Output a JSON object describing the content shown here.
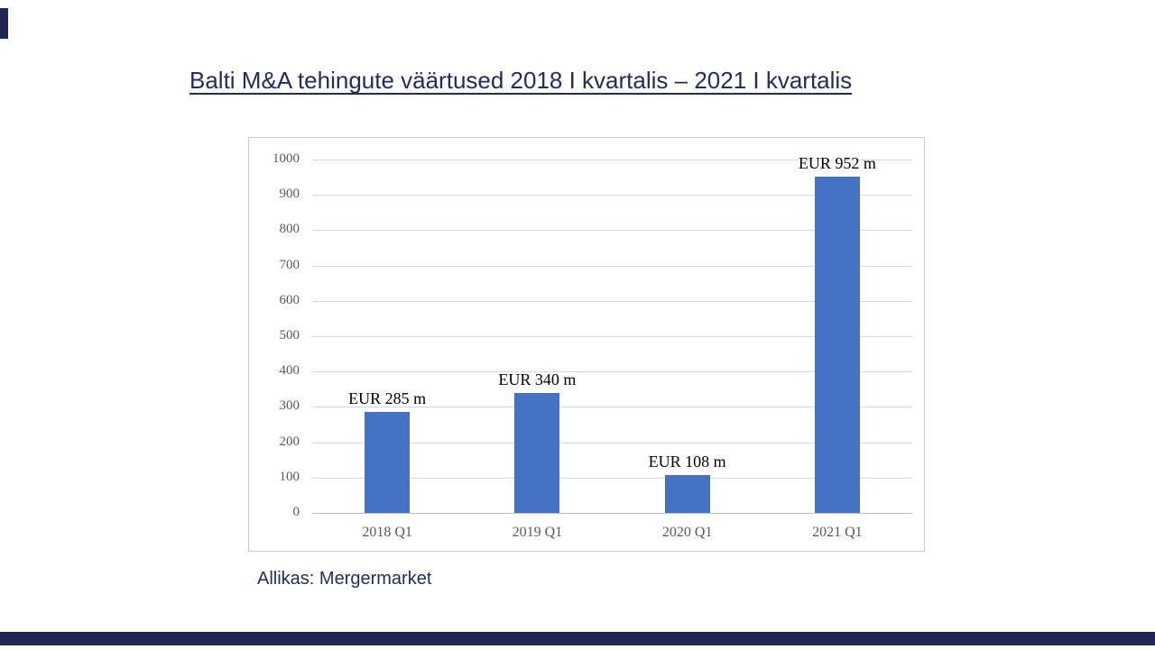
{
  "page": {
    "title": "Balti M&A tehingute väärtused 2018 I kvartalis – 2021 I kvartalis",
    "source_note": "Allikas: Mergermarket"
  },
  "colors": {
    "title_text": "#232C61",
    "decor_bar": "#202551",
    "bar_fill": "#4472C4",
    "grid_line": "#D9D9D9",
    "axis_line": "#BFBFBF",
    "tick_label": "#595959",
    "bar_label": "#000000",
    "chart_border": "#CCCCCC"
  },
  "chart_data": {
    "type": "bar",
    "title": "Balti M&A tehingute väärtused 2018 I kvartalis – 2021 I kvartalis",
    "xlabel": "",
    "ylabel": "",
    "categories": [
      "2018 Q1",
      "2019 Q1",
      "2020 Q1",
      "2021 Q1"
    ],
    "values": [
      285,
      340,
      108,
      952
    ],
    "bar_labels": [
      "EUR 285 m",
      "EUR 340 m",
      "EUR 108 m",
      "EUR 952 m"
    ],
    "ylim": [
      0,
      1000
    ],
    "yticks": [
      0,
      100,
      200,
      300,
      400,
      500,
      600,
      700,
      800,
      900,
      1000
    ],
    "grid": true,
    "legend_position": "none",
    "source": "Mergermarket"
  }
}
